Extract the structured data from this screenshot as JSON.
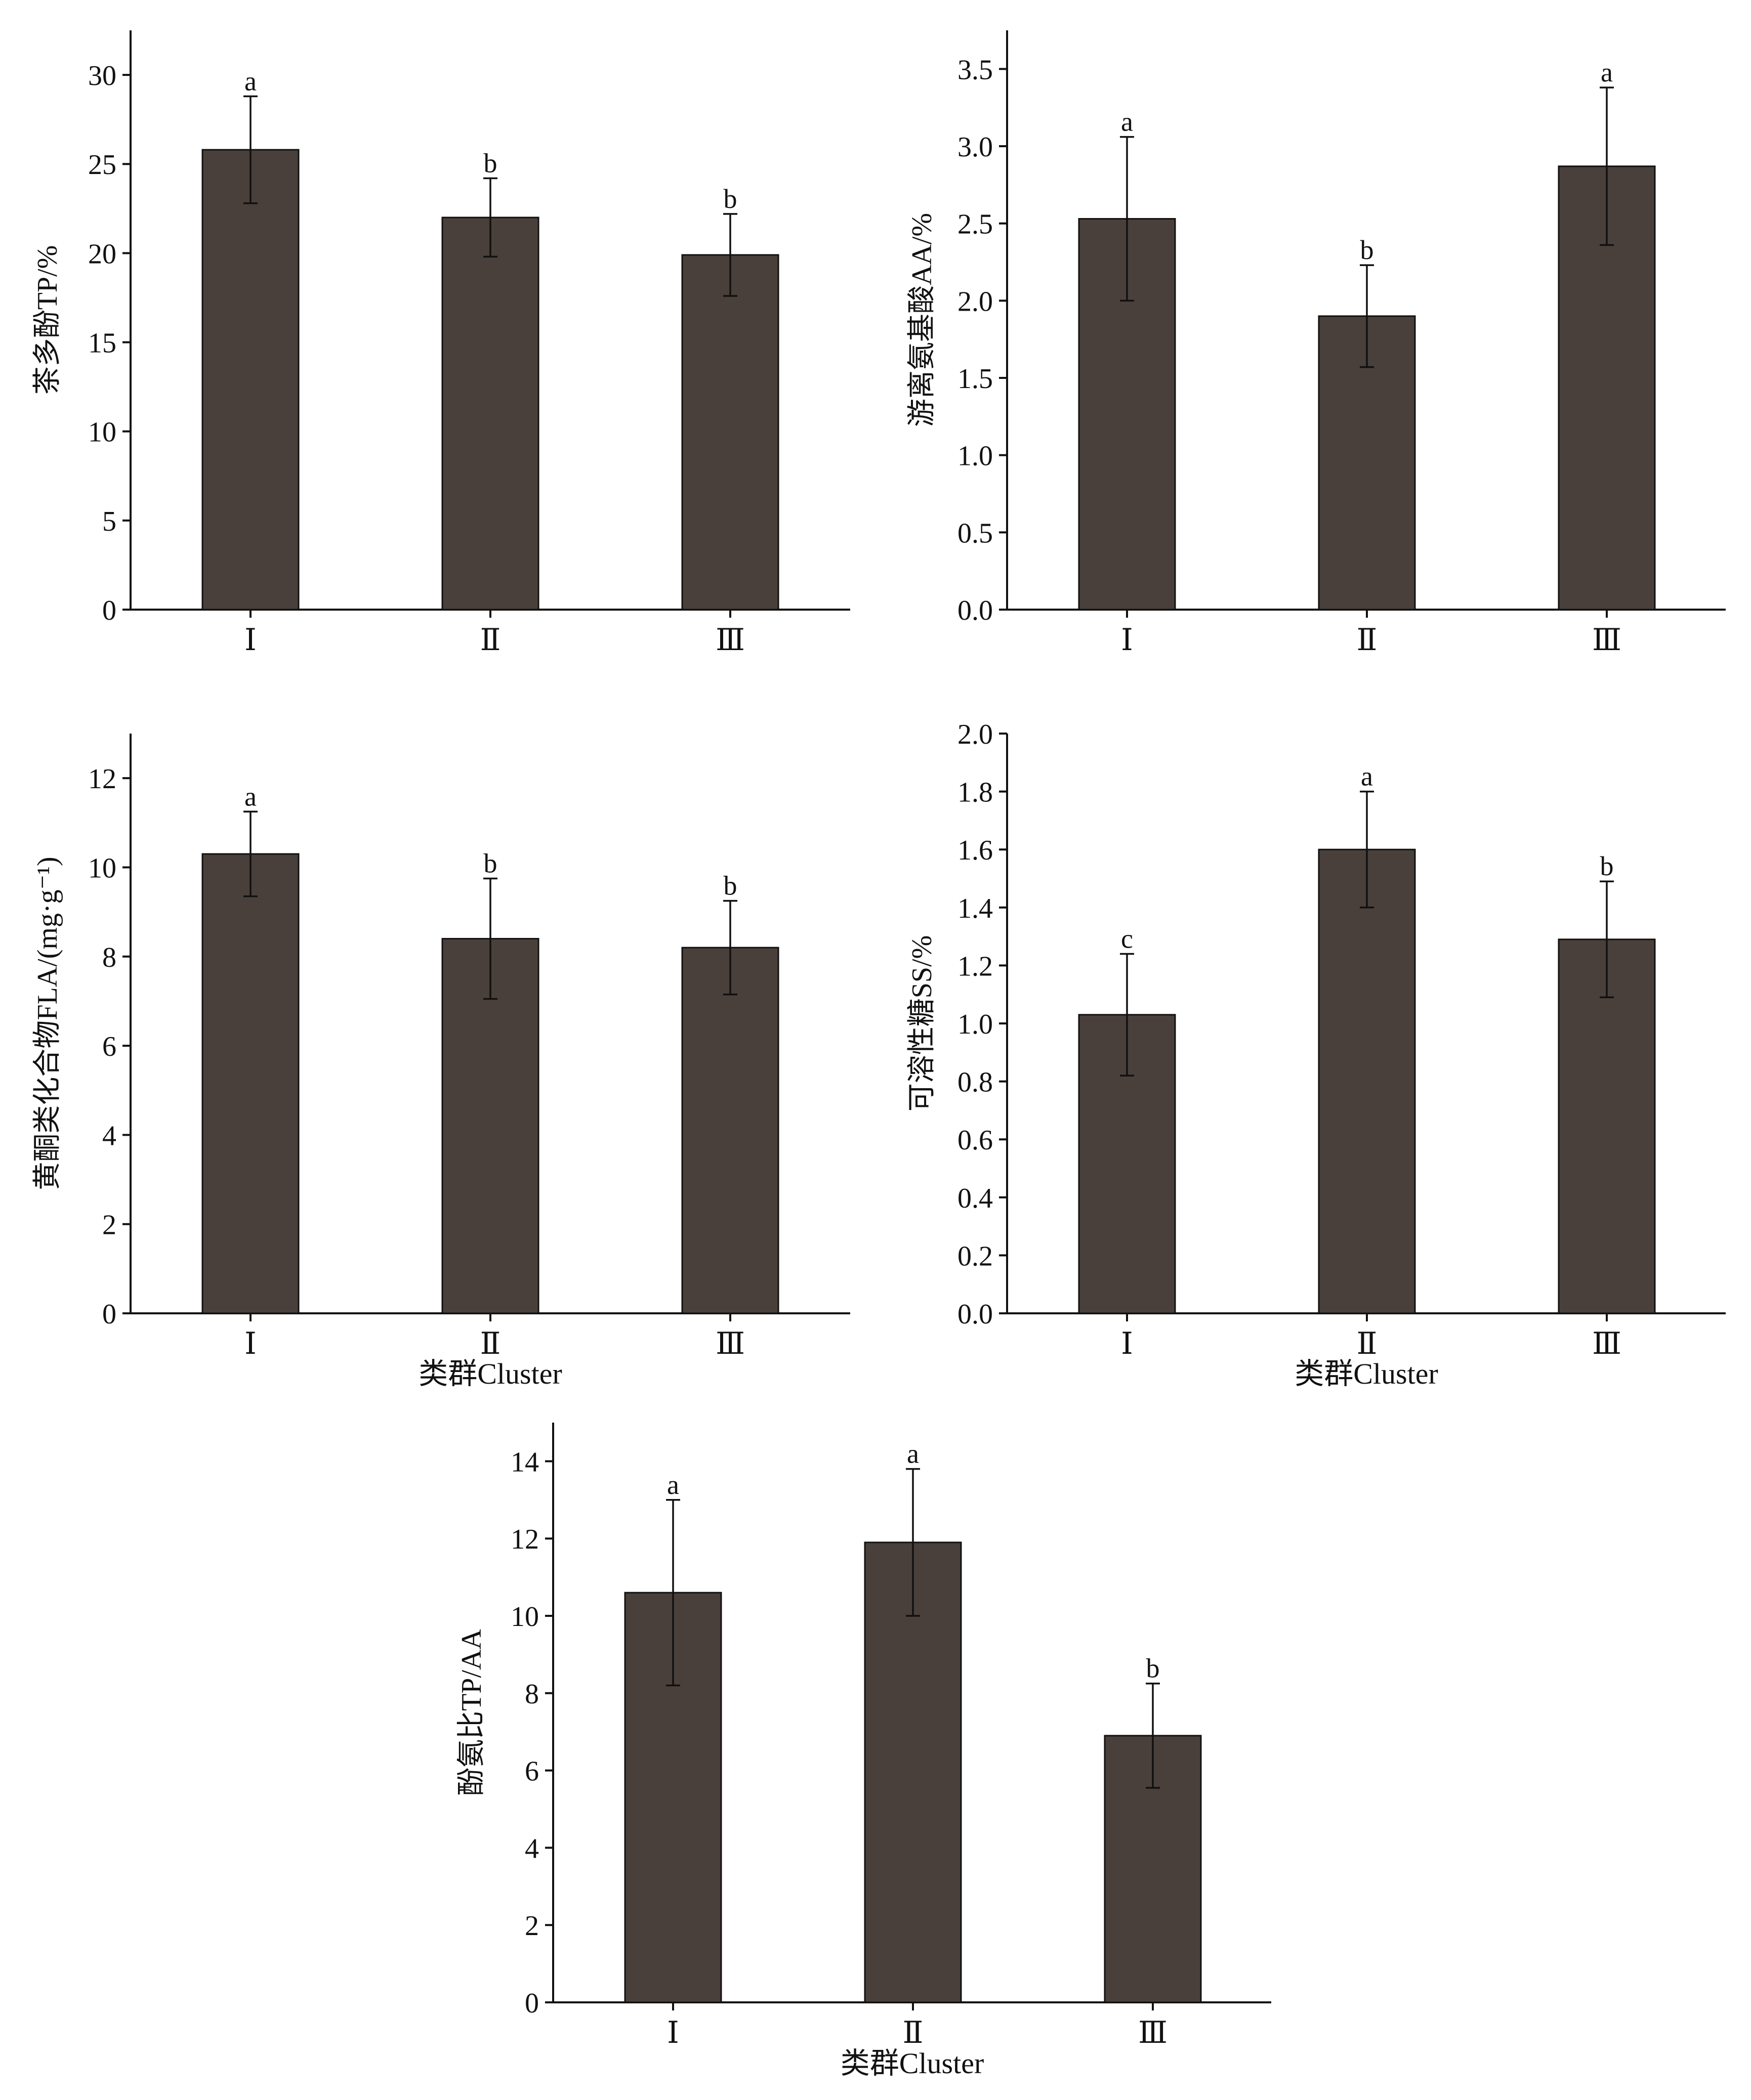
{
  "figure": {
    "bar_color": "#4a403b",
    "axis_color": "#111111"
  },
  "chart_data": [
    {
      "type": "bar",
      "id": "tp",
      "categories": [
        "Ⅰ",
        "Ⅱ",
        "Ⅲ"
      ],
      "values": [
        25.8,
        22.0,
        19.9
      ],
      "errors": [
        3.0,
        2.2,
        2.3
      ],
      "significance": [
        "a",
        "b",
        "b"
      ],
      "title": "",
      "xlabel": "",
      "ylabel": "茶多酚TP/%",
      "ylim": [
        0,
        32.5
      ],
      "yticks": [
        0,
        5,
        10,
        15,
        20,
        25,
        30
      ],
      "ytick_labels": [
        "0",
        "5",
        "10",
        "15",
        "20",
        "25",
        "30"
      ],
      "grid": false
    },
    {
      "type": "bar",
      "id": "aa",
      "categories": [
        "Ⅰ",
        "Ⅱ",
        "Ⅲ"
      ],
      "values": [
        2.53,
        1.9,
        2.87
      ],
      "errors": [
        0.53,
        0.33,
        0.51
      ],
      "significance": [
        "a",
        "b",
        "a"
      ],
      "title": "",
      "xlabel": "",
      "ylabel": "游离氨基酸AA/%",
      "ylim": [
        0,
        3.75
      ],
      "yticks": [
        0,
        0.5,
        1.0,
        1.5,
        2.0,
        2.5,
        3.0,
        3.5
      ],
      "ytick_labels": [
        "0.0",
        "0.5",
        "1.0",
        "1.5",
        "2.0",
        "2.5",
        "3.0",
        "3.5"
      ],
      "grid": false
    },
    {
      "type": "bar",
      "id": "fla",
      "categories": [
        "Ⅰ",
        "Ⅱ",
        "Ⅲ"
      ],
      "values": [
        10.3,
        8.4,
        8.2
      ],
      "errors": [
        0.95,
        1.35,
        1.05
      ],
      "significance": [
        "a",
        "b",
        "b"
      ],
      "title": "",
      "xlabel": "类群Cluster",
      "ylabel": "黄酮类化合物FLA/(mg·g⁻¹)",
      "ylim": [
        0,
        13
      ],
      "yticks": [
        0,
        2,
        4,
        6,
        8,
        10,
        12
      ],
      "ytick_labels": [
        "0",
        "2",
        "4",
        "6",
        "8",
        "10",
        "12"
      ],
      "grid": false
    },
    {
      "type": "bar",
      "id": "ss",
      "categories": [
        "Ⅰ",
        "Ⅱ",
        "Ⅲ"
      ],
      "values": [
        1.03,
        1.6,
        1.29
      ],
      "errors": [
        0.21,
        0.2,
        0.2
      ],
      "significance": [
        "c",
        "a",
        "b"
      ],
      "title": "",
      "xlabel": "类群Cluster",
      "ylabel": "可溶性糖SS/%",
      "ylim": [
        0,
        2.0
      ],
      "yticks": [
        0,
        0.2,
        0.4,
        0.6,
        0.8,
        1.0,
        1.2,
        1.4,
        1.6,
        1.8,
        2.0
      ],
      "ytick_labels": [
        "0.0",
        "0.2",
        "0.4",
        "0.6",
        "0.8",
        "1.0",
        "1.2",
        "1.4",
        "1.6",
        "1.8",
        "2.0"
      ],
      "grid": false
    },
    {
      "type": "bar",
      "id": "ratio",
      "categories": [
        "Ⅰ",
        "Ⅱ",
        "Ⅲ"
      ],
      "values": [
        10.6,
        11.9,
        6.9
      ],
      "errors": [
        2.4,
        1.9,
        1.35
      ],
      "significance": [
        "a",
        "a",
        "b"
      ],
      "title": "",
      "xlabel": "类群Cluster",
      "ylabel": "酚氨比TP/AA",
      "ylim": [
        0,
        15
      ],
      "yticks": [
        0,
        2,
        4,
        6,
        8,
        10,
        12,
        14
      ],
      "ytick_labels": [
        "0",
        "2",
        "4",
        "6",
        "8",
        "10",
        "12",
        "14"
      ],
      "grid": false
    }
  ]
}
